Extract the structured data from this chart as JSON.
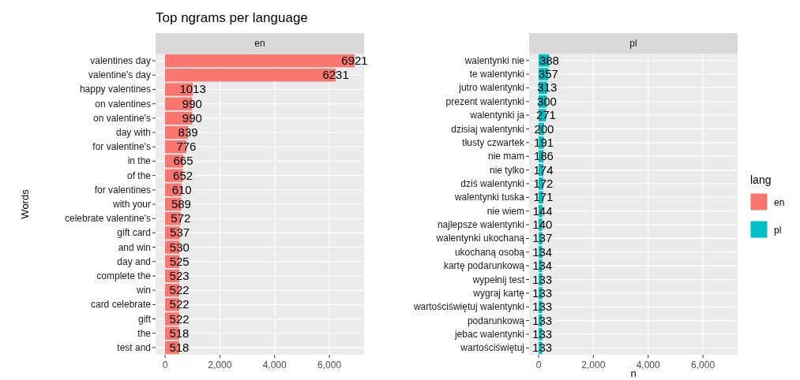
{
  "chart_data": [
    {
      "type": "bar",
      "orientation": "horizontal",
      "title": "Top ngrams per language",
      "subtitle": "en",
      "ylabel": "Words",
      "categories": [
        "valentines day",
        "valentine's day",
        "happy valentines",
        "on valentines",
        "on valentine's",
        "day with",
        "for valentine's",
        "in the",
        "of the",
        "for valentines",
        "with your",
        "celebrate valentine's",
        "gift card",
        "and win",
        "day and",
        "complete the",
        "win",
        "card celebrate",
        "gift",
        "the",
        "test and"
      ],
      "series": [
        {
          "name": "en",
          "color": "#f8766d",
          "values": [
            6921,
            6231,
            1013,
            990,
            990,
            839,
            776,
            665,
            652,
            610,
            589,
            572,
            537,
            530,
            525,
            523,
            522,
            522,
            522,
            518,
            518
          ]
        }
      ],
      "xlim": [
        -346,
        7267
      ],
      "xticks": [
        0,
        {
          "value": 2000,
          "label": "2,000"
        },
        {
          "value": 4000,
          "label": "4,000"
        },
        {
          "value": 6000,
          "label": "6,000"
        }
      ],
      "grid": true,
      "legend": "right",
      "data_labels": true
    },
    {
      "type": "bar",
      "orientation": "horizontal",
      "subtitle": "pl",
      "xlabel": "n",
      "legend_title": "lang",
      "categories": [
        "walentynki nie",
        "te walentynki",
        "jutro walentynki",
        "prezent walentynki",
        "walentynki ja",
        "dzisiaj walentynki",
        "tłusty czwartek",
        "nie mam",
        "nie tylko",
        "dziś walentynki",
        "walentynki tuska",
        "nie wiem",
        "najlepsze walentynki",
        "walentynki ukochaną",
        "ukochaną osobą",
        "kartę podarunkową",
        "wypełnij test",
        "wygraj kartę",
        "wartościświętuj walentynki",
        "podarunkową",
        "jebac walentynki",
        "wartościświętuj"
      ],
      "series": [
        {
          "name": "pl",
          "color": "#00bfc4",
          "values": [
            388,
            357,
            313,
            300,
            271,
            200,
            191,
            186,
            174,
            172,
            171,
            144,
            140,
            137,
            134,
            134,
            133,
            133,
            133,
            133,
            133,
            133
          ]
        }
      ],
      "xlim": [
        -346,
        7267
      ],
      "xticks": [
        0,
        {
          "value": 2000,
          "label": "2,000"
        },
        {
          "value": 4000,
          "label": "4,000"
        },
        {
          "value": 6000,
          "label": "6,000"
        }
      ],
      "grid": true,
      "legend": "right",
      "data_labels": true
    }
  ]
}
